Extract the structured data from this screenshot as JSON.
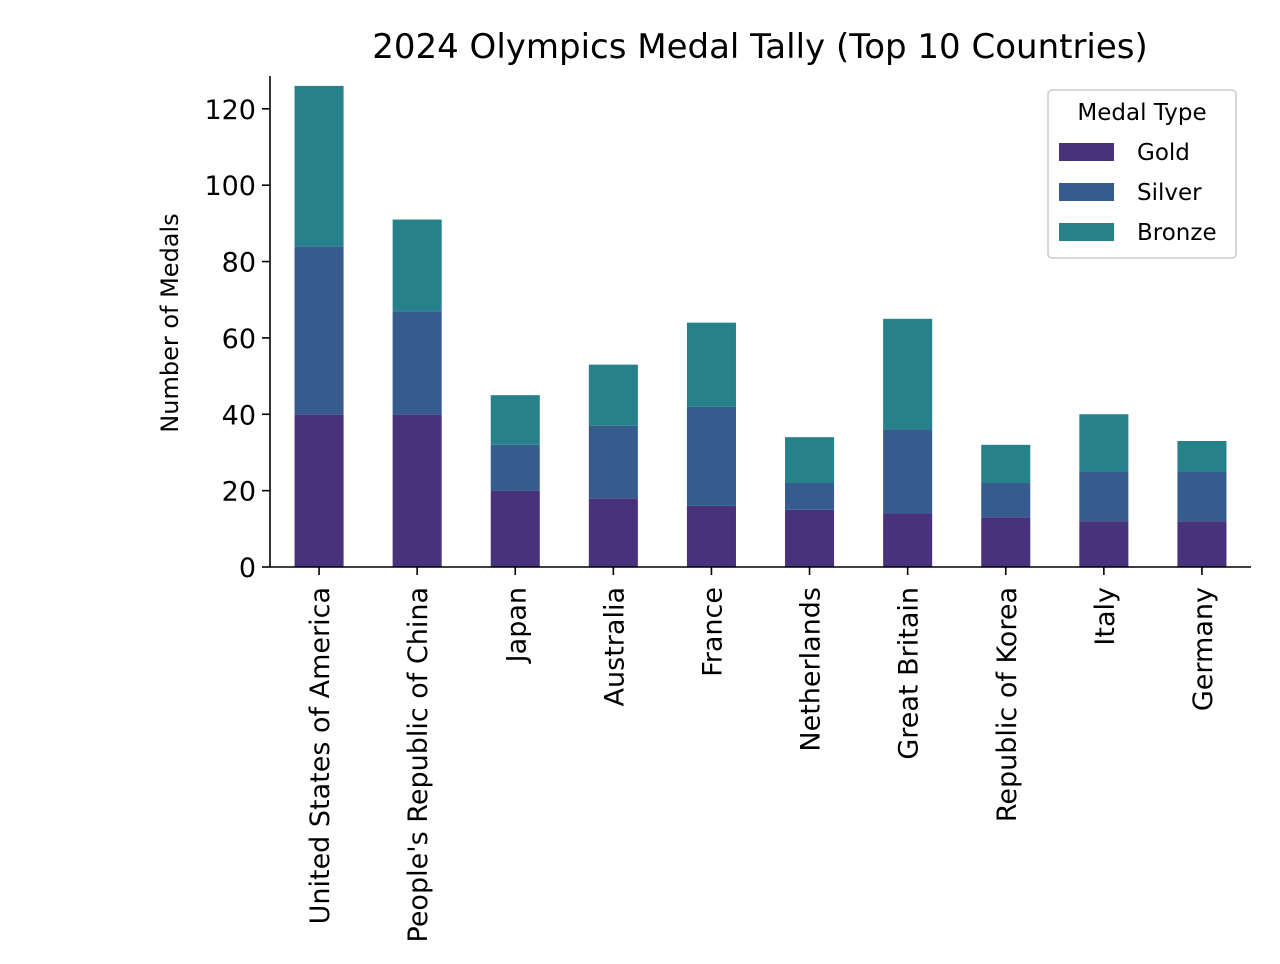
{
  "chart_data": {
    "type": "bar",
    "stacked": true,
    "title": "2024 Olympics Medal Tally (Top 10 Countries)",
    "xlabel": "",
    "ylabel": "Number of Medals",
    "ylim": [
      0,
      132
    ],
    "yticks": [
      0,
      20,
      40,
      60,
      80,
      100,
      120
    ],
    "grid": false,
    "legend": {
      "title": "Medal Type",
      "placement": "top-right"
    },
    "categories": [
      "United States of America",
      "People's Republic of China",
      "Japan",
      "Australia",
      "France",
      "Netherlands",
      "Great Britain",
      "Republic of Korea",
      "Italy",
      "Germany"
    ],
    "series": [
      {
        "name": "Gold",
        "color": "#48327b",
        "values": [
          40,
          40,
          20,
          18,
          16,
          15,
          14,
          13,
          12,
          12
        ]
      },
      {
        "name": "Silver",
        "color": "#355c8d",
        "values": [
          44,
          27,
          12,
          19,
          26,
          7,
          22,
          9,
          13,
          13
        ]
      },
      {
        "name": "Bronze",
        "color": "#26818b",
        "values": [
          42,
          24,
          13,
          16,
          22,
          12,
          29,
          10,
          15,
          8
        ]
      }
    ]
  }
}
